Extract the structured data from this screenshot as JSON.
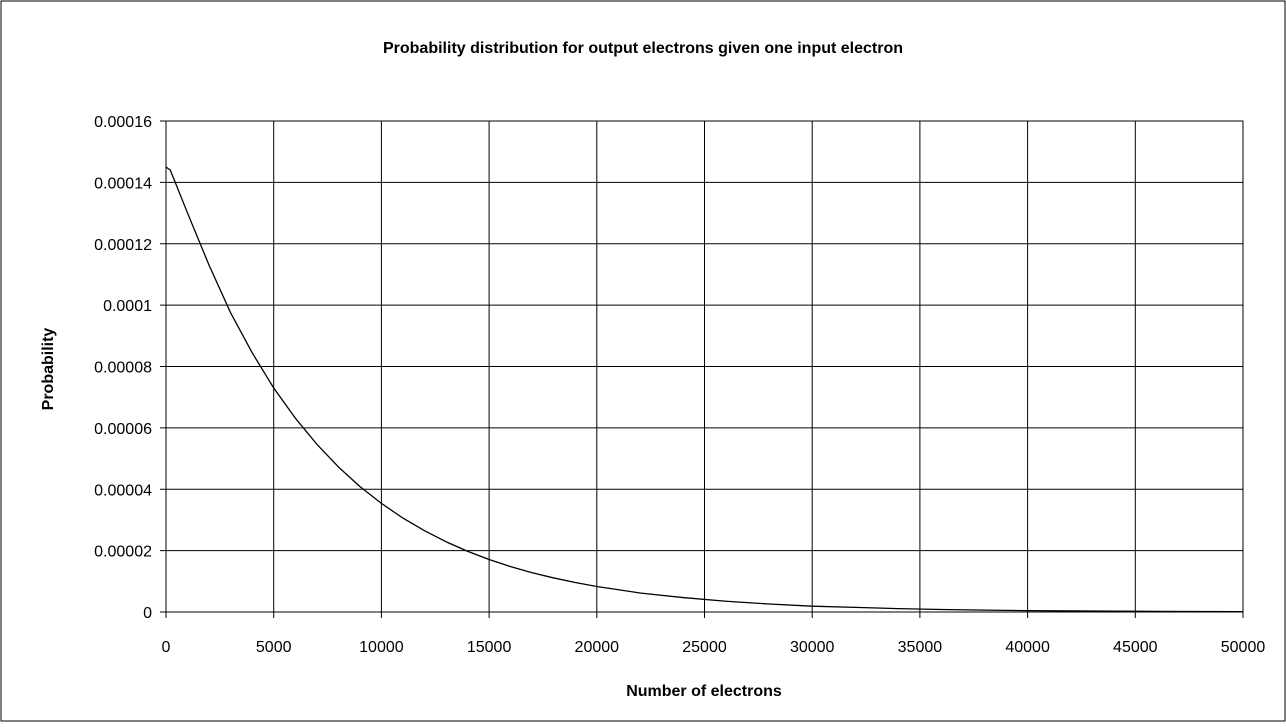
{
  "chart_data": {
    "type": "line",
    "title": "Probability distribution for output electrons given one input electron",
    "xlabel": "Number of electrons",
    "ylabel": "Probability",
    "xlim": [
      0,
      50000
    ],
    "ylim": [
      0,
      0.00016
    ],
    "x_ticks": [
      "0",
      "5000",
      "10000",
      "15000",
      "20000",
      "25000",
      "30000",
      "35000",
      "40000",
      "45000",
      "50000"
    ],
    "y_ticks": [
      "0",
      "0.00002",
      "0.00004",
      "0.00006",
      "0.00008",
      "0.0001",
      "0.00012",
      "0.00014",
      "0.00016"
    ],
    "grid": true,
    "legend": "none",
    "colors": {
      "line": "#000000",
      "grid": "#000000",
      "background": "#ffffff",
      "frame": "#000000"
    },
    "series": [
      {
        "x": [
          0,
          200,
          1000,
          2000,
          3000,
          4000,
          5000,
          6000,
          7000,
          8000,
          9000,
          10000,
          11000,
          12000,
          13000,
          14000,
          15000,
          16000,
          17000,
          18000,
          19000,
          20000,
          22000,
          24000,
          26000,
          28000,
          30000,
          32000,
          34000,
          36000,
          38000,
          40000,
          42000,
          44000,
          46000,
          48000,
          50000
        ],
        "y": [
          0.000145,
          0.000144,
          0.00013,
          0.000113,
          9.75e-05,
          8.45e-05,
          7.3e-05,
          6.32e-05,
          5.47e-05,
          4.73e-05,
          4.09e-05,
          3.54e-05,
          3.06e-05,
          2.65e-05,
          2.29e-05,
          1.98e-05,
          1.71e-05,
          1.48e-05,
          1.28e-05,
          1.11e-05,
          9.6e-06,
          8.3e-06,
          6.2e-06,
          4.7e-06,
          3.5e-06,
          2.6e-06,
          1.9e-06,
          1.5e-06,
          1.1e-06,
          8.2e-07,
          6.1e-07,
          4.6e-07,
          3.5e-07,
          2.6e-07,
          2e-07,
          1.5e-07,
          1.1e-07
        ]
      }
    ]
  }
}
